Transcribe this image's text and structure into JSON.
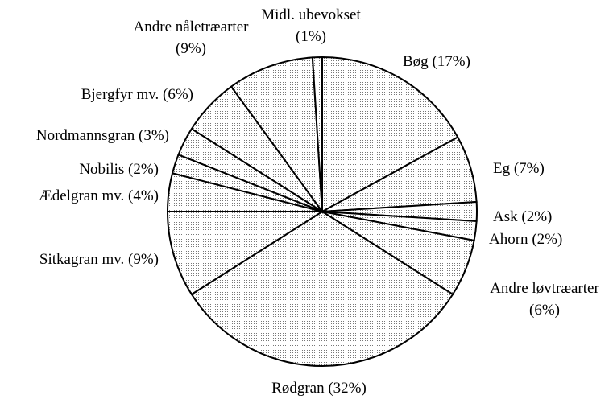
{
  "chart_data": {
    "type": "pie",
    "categories": [
      "Bøg",
      "Eg",
      "Ask",
      "Ahorn",
      "Andre løvtræarter",
      "Rødgran",
      "Sitkagran mv.",
      "Ædelgran mv.",
      "Nobilis",
      "Nordmannsgran",
      "Bjergfyr mv.",
      "Andre nåletræarter",
      "Midl. ubevokset"
    ],
    "values": [
      17,
      7,
      2,
      2,
      6,
      32,
      9,
      4,
      2,
      3,
      6,
      9,
      1
    ],
    "value_labels": [
      "(17%)",
      "(7%)",
      "(2%)",
      "(2%)",
      "(6%)",
      "(32%)",
      "(9%)",
      "(4%)",
      "(2%)",
      "(3%)",
      "(6%)",
      "(9%)",
      "(1%)"
    ],
    "color": "#d9d9d9"
  }
}
